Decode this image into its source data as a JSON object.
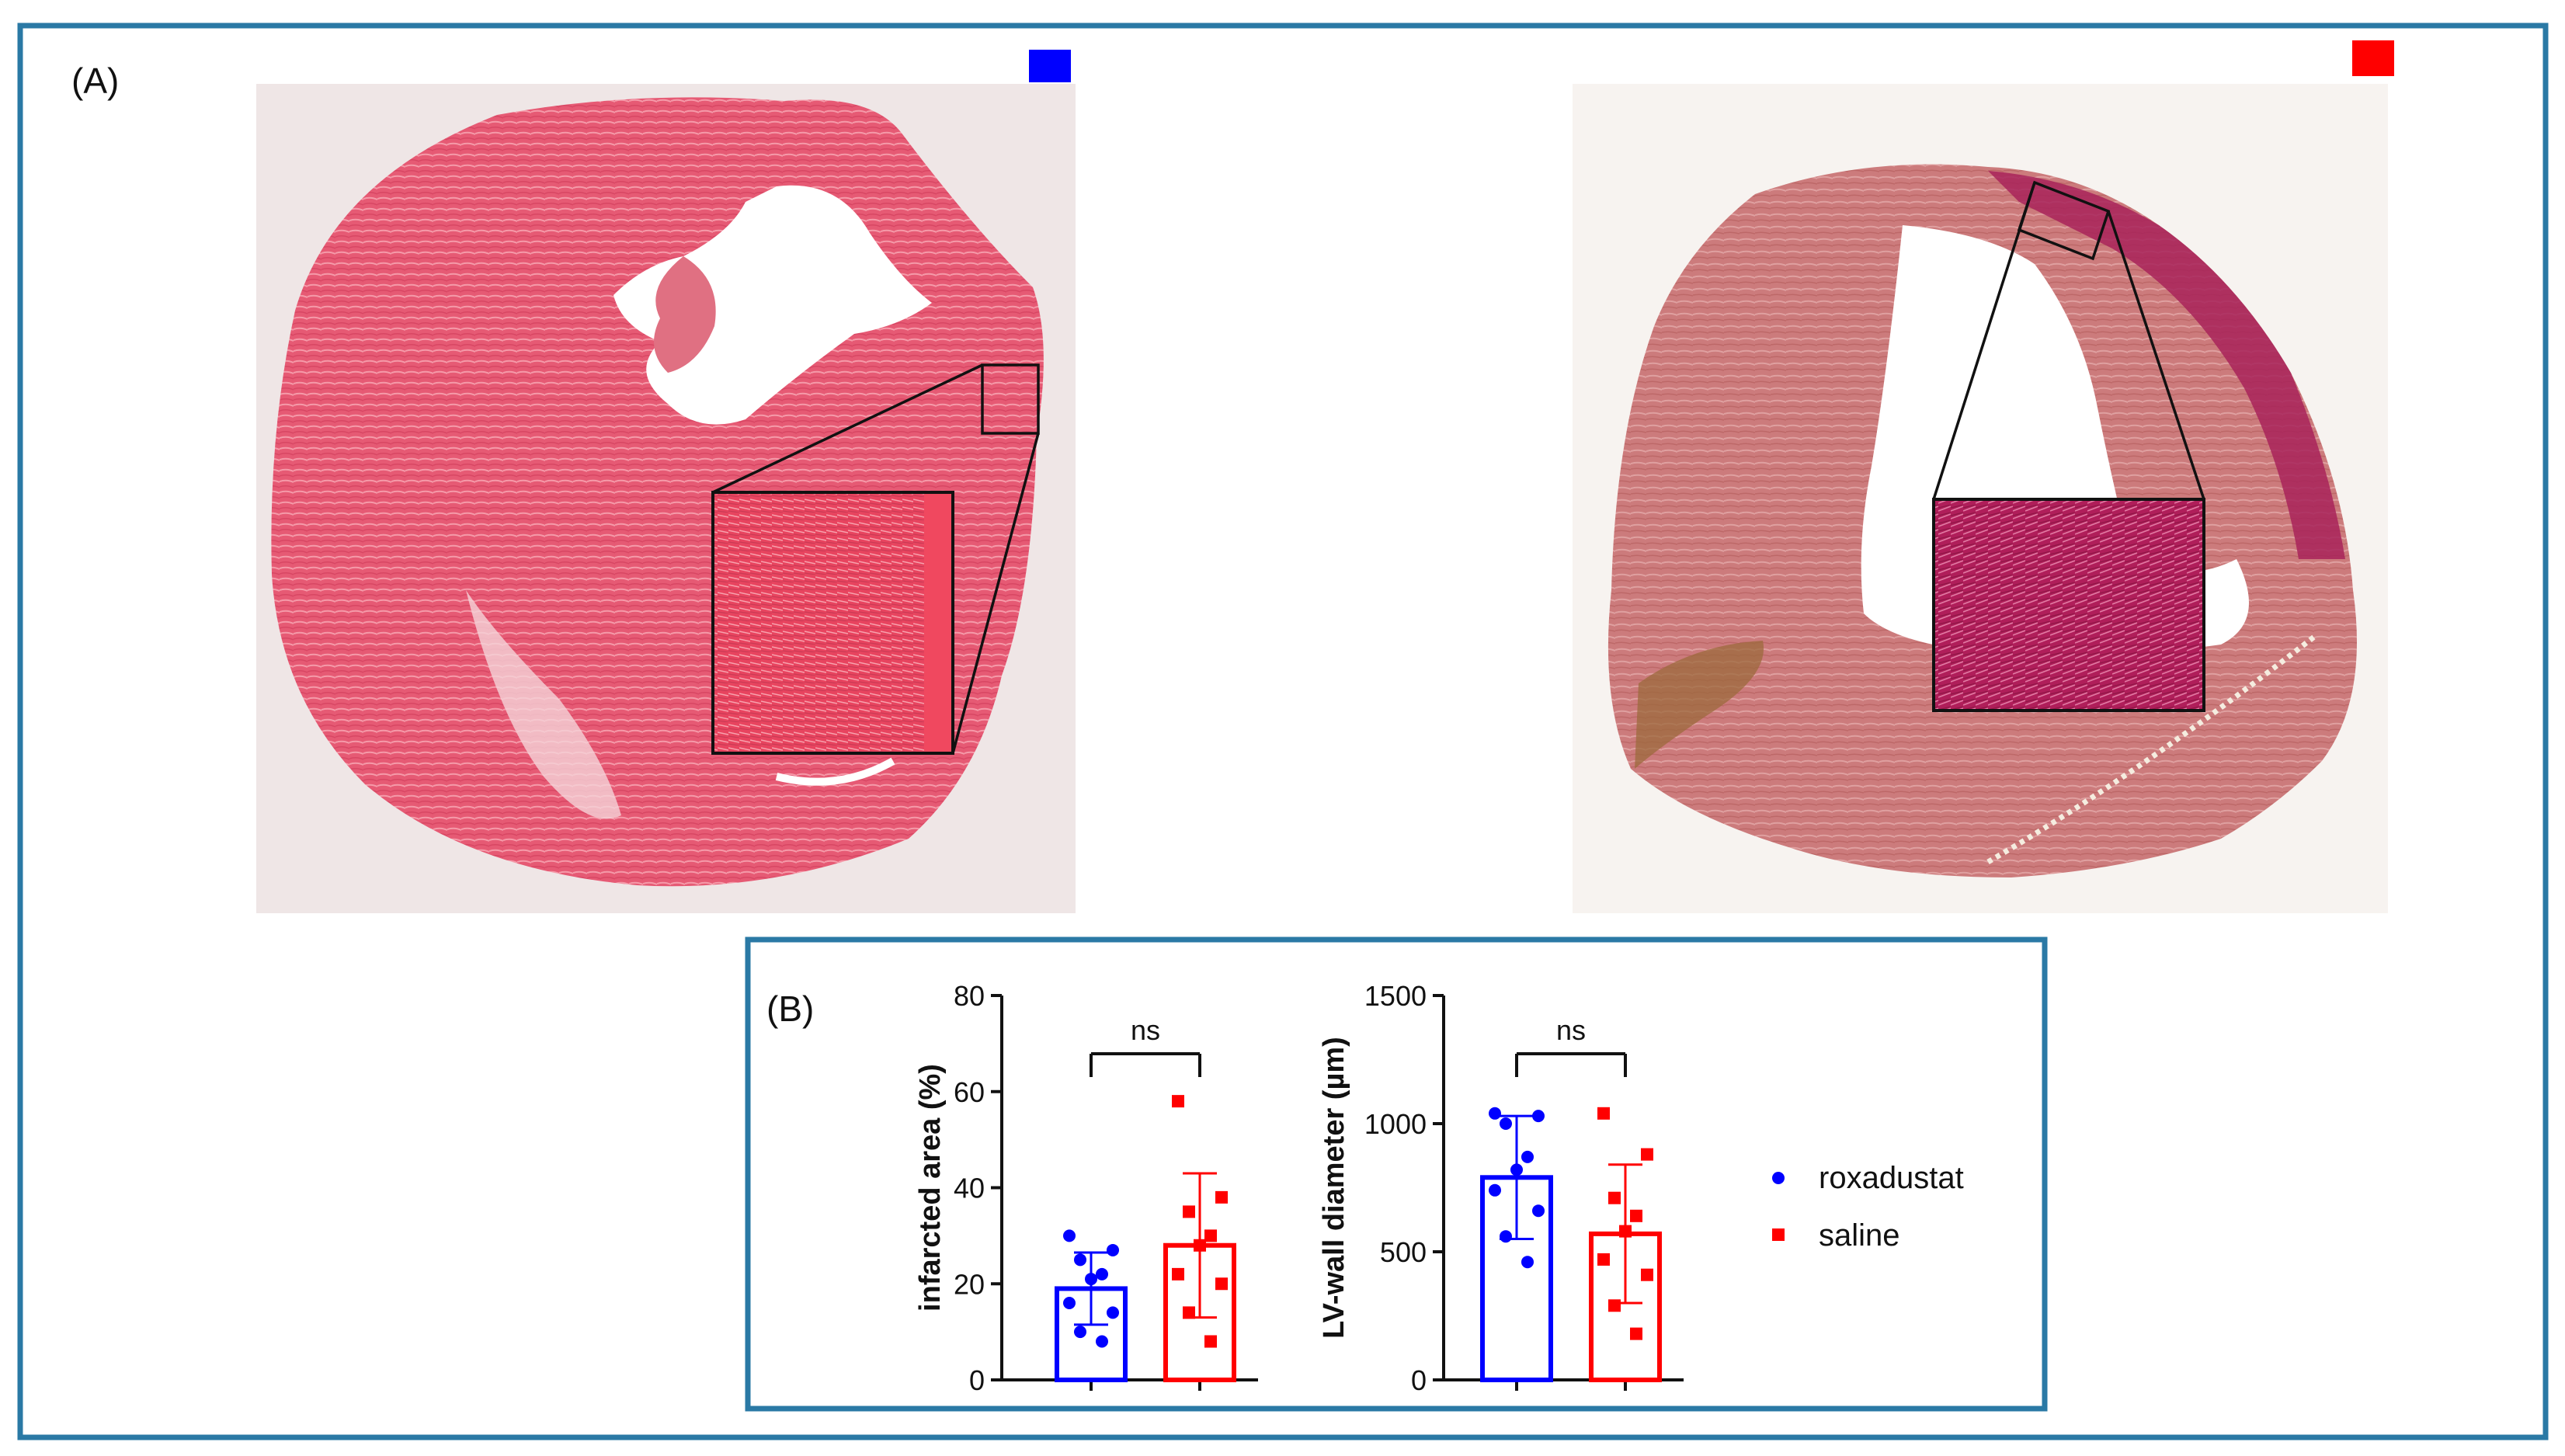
{
  "panel_a": {
    "label": "(A)",
    "groups": [
      {
        "name": "roxadustat",
        "color": "#0000ff"
      },
      {
        "name": "saline",
        "color": "#ff0000"
      }
    ],
    "images": [
      {
        "name": "roxadustat-heart-section",
        "stain": "#e8506a"
      },
      {
        "name": "saline-heart-section",
        "stain": "#c8767a"
      }
    ]
  },
  "panel_b": {
    "label": "(B)"
  },
  "legend": [
    {
      "label": "roxadustat",
      "color": "#0000ff",
      "marker": "circle"
    },
    {
      "label": "saline",
      "color": "#ff0000",
      "marker": "square"
    }
  ],
  "chart_data": [
    {
      "type": "bar",
      "ylabel": "infarcted area (%)",
      "xlabel": "",
      "ylim": [
        0,
        80
      ],
      "yticks": [
        0,
        20,
        40,
        60,
        80
      ],
      "categories": [
        "roxadustat",
        "saline"
      ],
      "series": [
        {
          "name": "roxadustat",
          "color": "#0000ff",
          "mean": 19,
          "sd": 7.5,
          "points": [
            30,
            27,
            25,
            22,
            21,
            16,
            14,
            10,
            8
          ]
        },
        {
          "name": "saline",
          "color": "#ff0000",
          "mean": 28,
          "sd": 15,
          "points": [
            58,
            38,
            35,
            30,
            28,
            22,
            20,
            14,
            8
          ]
        }
      ],
      "significance": "ns"
    },
    {
      "type": "bar",
      "ylabel": "LV-wall diameter (µm)",
      "xlabel": "",
      "ylim": [
        0,
        1500
      ],
      "yticks": [
        0,
        500,
        1000,
        1500
      ],
      "categories": [
        "roxadustat",
        "saline"
      ],
      "series": [
        {
          "name": "roxadustat",
          "color": "#0000ff",
          "mean": 790,
          "sd": 240,
          "points": [
            1040,
            1030,
            1000,
            870,
            820,
            740,
            660,
            560,
            460
          ]
        },
        {
          "name": "saline",
          "color": "#ff0000",
          "mean": 570,
          "sd": 270,
          "points": [
            1040,
            880,
            710,
            640,
            580,
            470,
            410,
            290,
            180
          ]
        }
      ],
      "significance": "ns"
    }
  ]
}
